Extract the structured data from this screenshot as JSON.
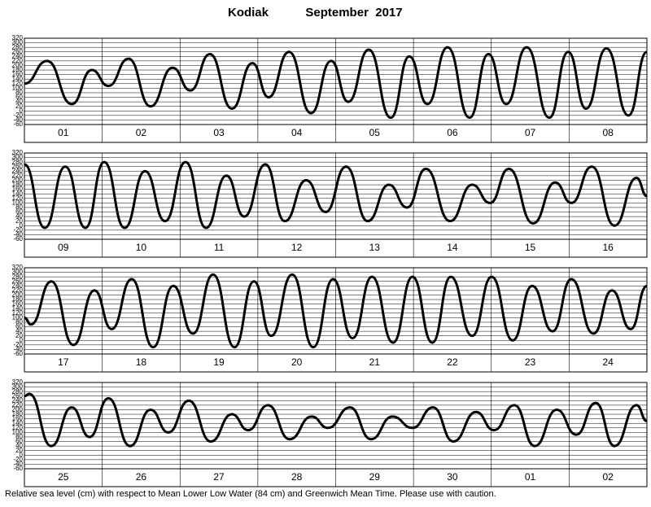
{
  "title_place": "Kodiak",
  "title_month": "September  2017",
  "footnote": "Relative sea level (cm) with respect to Mean Lower Low Water (84 cm) and Greenwich Mean Time. Please use with caution.",
  "chart_data": [
    {
      "type": "line",
      "categories": [
        "01",
        "02",
        "03",
        "04",
        "05",
        "06",
        "07",
        "08"
      ],
      "x": [
        0,
        7.0,
        14.6,
        20.8,
        25.9,
        32.1,
        38.9,
        45.7,
        51.2,
        57.2,
        64.0,
        70.3,
        75.3,
        81.6,
        88.4,
        94.6,
        99.9,
        106.2,
        113.0,
        118.7,
        124.3,
        130.5,
        137.3,
        143.1,
        148.6,
        154.9,
        161.9,
        167.7,
        173.2,
        179.5,
        186.3,
        192
      ],
      "series": [
        {
          "color": "#000000",
          "values": [
            120,
            220,
            30,
            180,
            110,
            230,
            20,
            190,
            90,
            250,
            10,
            210,
            60,
            260,
            -10,
            220,
            40,
            270,
            -30,
            240,
            30,
            280,
            -30,
            250,
            30,
            280,
            -30,
            260,
            10,
            275,
            -20,
            260
          ]
        }
      ],
      "xlim": [
        0,
        192
      ],
      "ylim": [
        -60,
        320
      ],
      "yticks": [
        -60,
        -40,
        -20,
        0,
        20,
        40,
        60,
        80,
        100,
        120,
        140,
        160,
        180,
        200,
        220,
        240,
        260,
        280,
        300,
        320
      ],
      "grid": true
    },
    {
      "type": "line",
      "categories": [
        "09",
        "10",
        "11",
        "12",
        "13",
        "14",
        "15",
        "16"
      ],
      "x": [
        0,
        6.3,
        12.6,
        18.8,
        24.6,
        30.9,
        37.2,
        43.4,
        49.7,
        56.0,
        62.3,
        67.8,
        74.3,
        80.3,
        86.9,
        92.9,
        99.2,
        105.9,
        112.4,
        118.0,
        123.8,
        131.3,
        138.1,
        143.6,
        149.4,
        156.9,
        163.7,
        168.7,
        175.0,
        182.0,
        188.8,
        192
      ],
      "series": [
        {
          "color": "#000000",
          "values": [
            270,
            -10,
            260,
            -10,
            280,
            -10,
            240,
            20,
            280,
            -10,
            220,
            40,
            270,
            20,
            200,
            60,
            260,
            20,
            180,
            80,
            250,
            20,
            180,
            100,
            250,
            10,
            190,
            100,
            260,
            0,
            210,
            130
          ]
        }
      ],
      "xlim": [
        0,
        192
      ],
      "ylim": [
        -60,
        320
      ],
      "yticks": [
        -60,
        -40,
        -20,
        0,
        20,
        40,
        60,
        80,
        100,
        120,
        140,
        160,
        180,
        200,
        220,
        240,
        260,
        280,
        300,
        320
      ],
      "grid": true
    },
    {
      "type": "line",
      "categories": [
        "17",
        "18",
        "19",
        "20",
        "21",
        "22",
        "23",
        "24"
      ],
      "x": [
        0,
        2.0,
        8.3,
        15.1,
        21.6,
        26.9,
        33.1,
        39.7,
        45.9,
        52.0,
        58.2,
        64.8,
        70.8,
        76.1,
        82.6,
        89.1,
        95.2,
        101.2,
        107.2,
        113.7,
        119.7,
        125.8,
        131.5,
        138.1,
        144.1,
        150.6,
        156.6,
        162.9,
        168.7,
        175.5,
        181.2,
        187.0,
        192
      ],
      "series": [
        {
          "color": "#000000",
          "values": [
            100,
            70,
            260,
            -20,
            220,
            50,
            270,
            -30,
            240,
            30,
            290,
            -30,
            260,
            20,
            290,
            -30,
            270,
            10,
            280,
            -10,
            280,
            -10,
            280,
            20,
            280,
            0,
            240,
            40,
            270,
            30,
            220,
            50,
            240
          ]
        }
      ],
      "xlim": [
        0,
        192
      ],
      "ylim": [
        -60,
        320
      ],
      "yticks": [
        -60,
        -40,
        -20,
        0,
        20,
        40,
        60,
        80,
        100,
        120,
        140,
        160,
        180,
        200,
        220,
        240,
        260,
        280,
        300,
        320
      ],
      "grid": true
    },
    {
      "type": "line",
      "categories": [
        "25",
        "26",
        "27",
        "28",
        "29",
        "30",
        "01",
        "02"
      ],
      "x": [
        0,
        1.5,
        8.3,
        14.6,
        20.1,
        25.9,
        32.6,
        38.9,
        44.4,
        50.7,
        57.5,
        64.0,
        69.0,
        75.1,
        81.8,
        88.6,
        93.6,
        100.4,
        106.9,
        113.5,
        119.7,
        126.0,
        132.3,
        139.3,
        144.8,
        151.1,
        157.4,
        164.2,
        170.2,
        176.2,
        182.0,
        188.8,
        192
      ],
      "series": [
        {
          "color": "#000000",
          "values": [
            260,
            270,
            40,
            210,
            80,
            250,
            40,
            200,
            100,
            240,
            60,
            180,
            110,
            220,
            70,
            170,
            120,
            210,
            70,
            170,
            120,
            210,
            60,
            190,
            110,
            220,
            40,
            200,
            90,
            230,
            40,
            220,
            150
          ]
        }
      ],
      "xlim": [
        0,
        192
      ],
      "ylim": [
        -60,
        320
      ],
      "yticks": [
        -60,
        -40,
        -20,
        0,
        20,
        40,
        60,
        80,
        100,
        120,
        140,
        160,
        180,
        200,
        220,
        240,
        260,
        280,
        300,
        320
      ],
      "grid": true
    }
  ]
}
